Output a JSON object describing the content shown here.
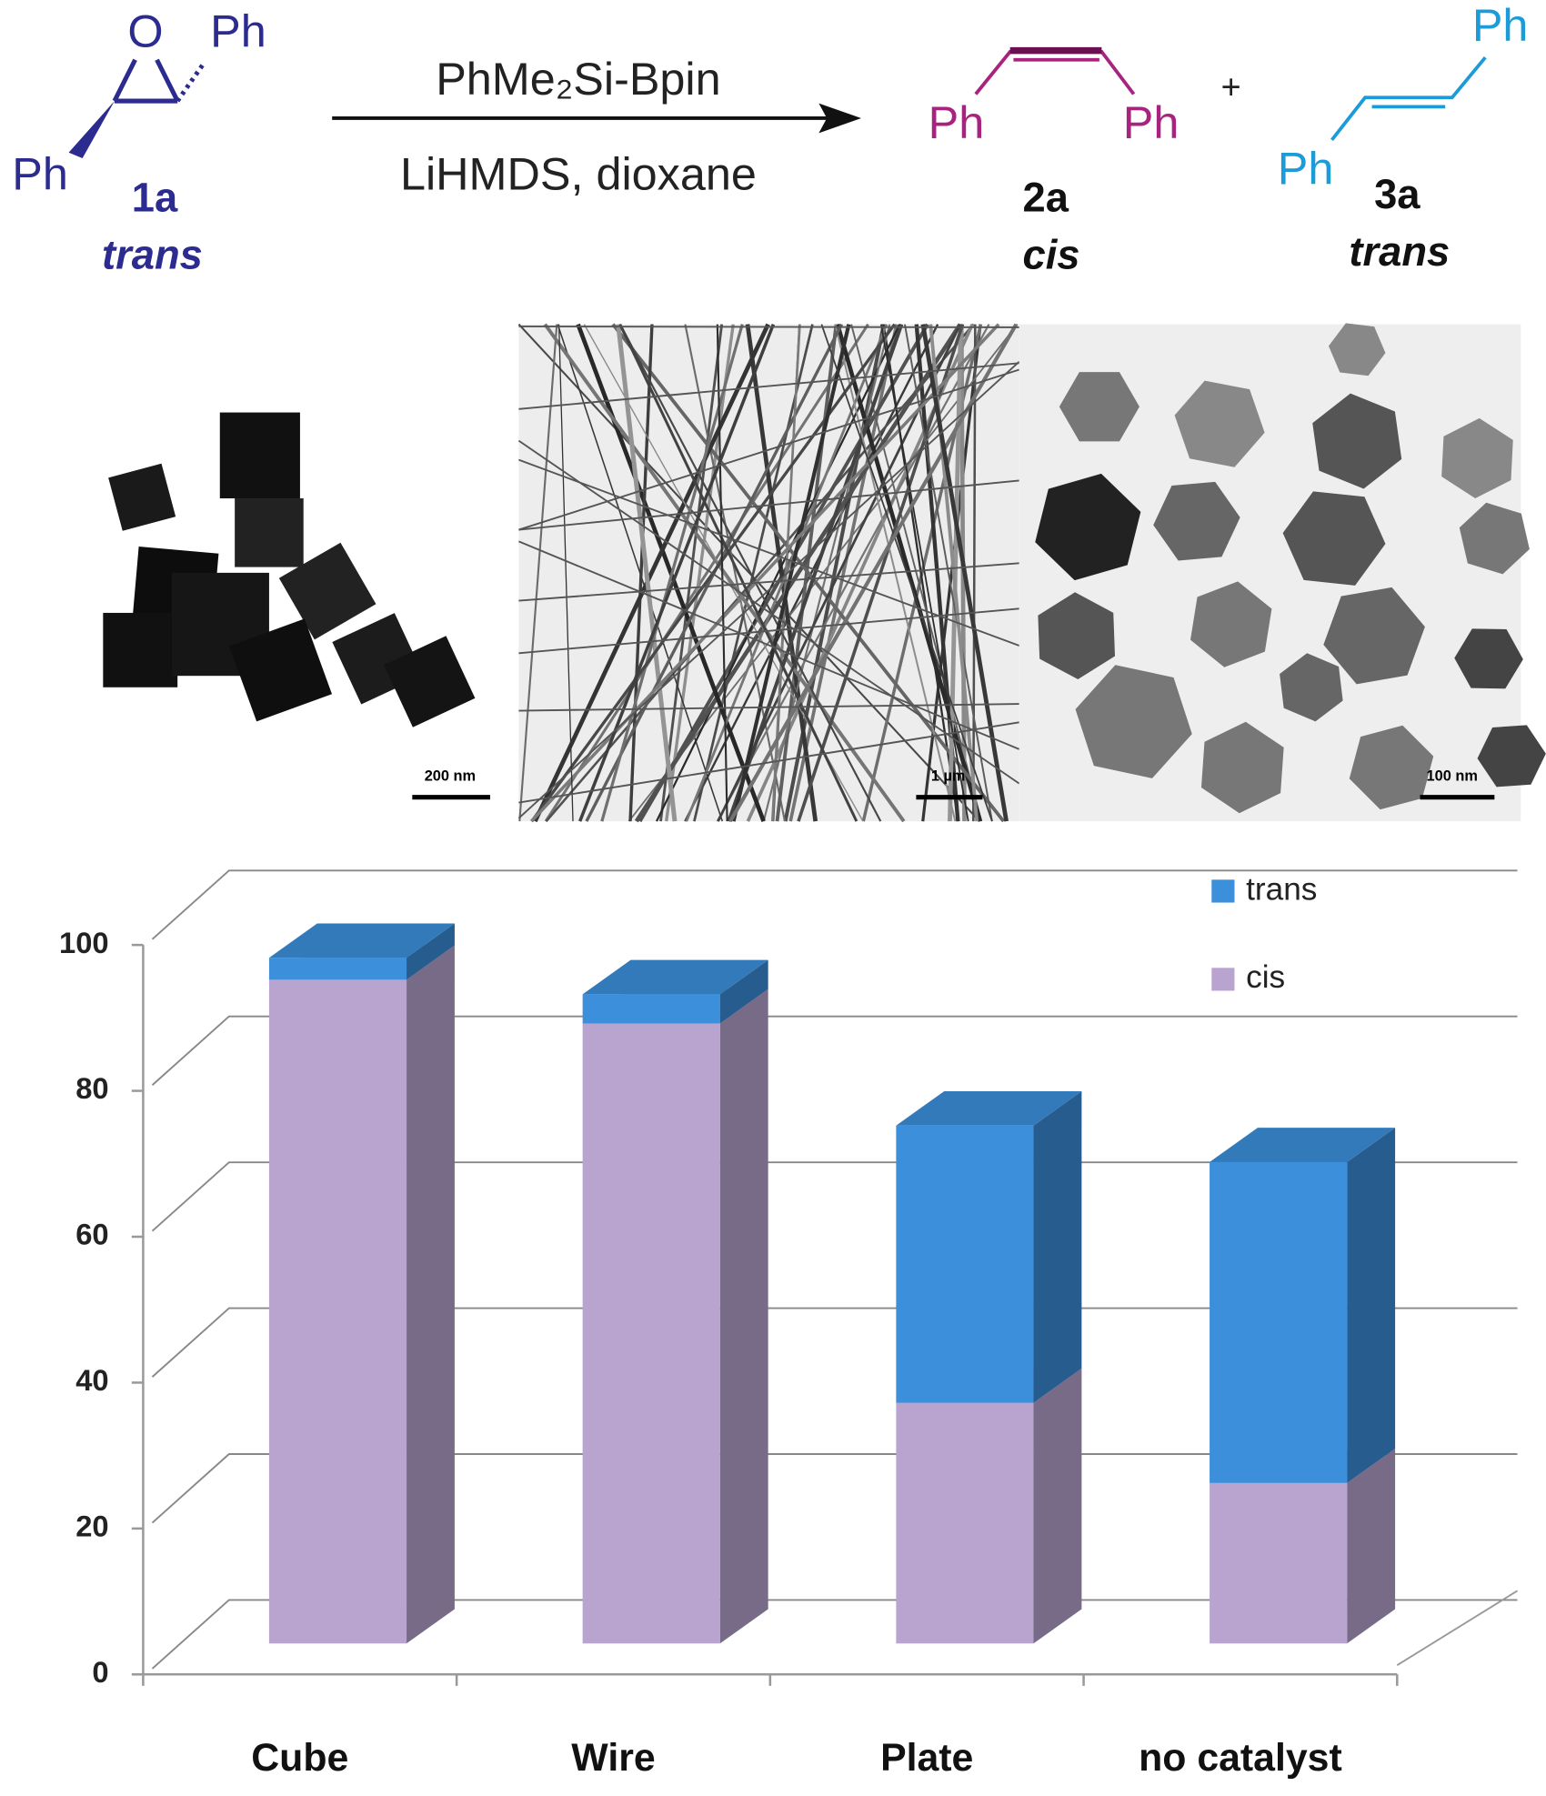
{
  "scheme": {
    "reactant": {
      "atoms": [
        "O",
        "Ph",
        "Ph"
      ],
      "label": "1a",
      "descriptor": "trans"
    },
    "reagents": [
      "PhMe₂Si-Bpin",
      "LiHMDS, dioxane"
    ],
    "plus": "+",
    "products": [
      {
        "atoms": [
          "Ph",
          "Ph"
        ],
        "label": "2a",
        "descriptor": "cis"
      },
      {
        "atoms": [
          "Ph",
          "Ph"
        ],
        "label": "3a",
        "descriptor": "trans"
      }
    ]
  },
  "micrographs": [
    {
      "scale_bar": "200 nm"
    },
    {
      "scale_bar": "1 µm"
    },
    {
      "scale_bar": "100 nm"
    }
  ],
  "chart_data": {
    "type": "bar3d_stacked",
    "categories": [
      "Cube",
      "Wire",
      "Plate",
      "no catalyst"
    ],
    "series": [
      {
        "name": "cis",
        "color": "#b9a4d0",
        "values": [
          91,
          85,
          33,
          22
        ]
      },
      {
        "name": "trans",
        "color": "#3c8fdb",
        "values": [
          3,
          4,
          38,
          44
        ]
      }
    ],
    "ylim": [
      0,
      100
    ],
    "yticks": [
      0,
      20,
      40,
      60,
      80,
      100
    ],
    "grid": true,
    "legend": "top-right"
  }
}
